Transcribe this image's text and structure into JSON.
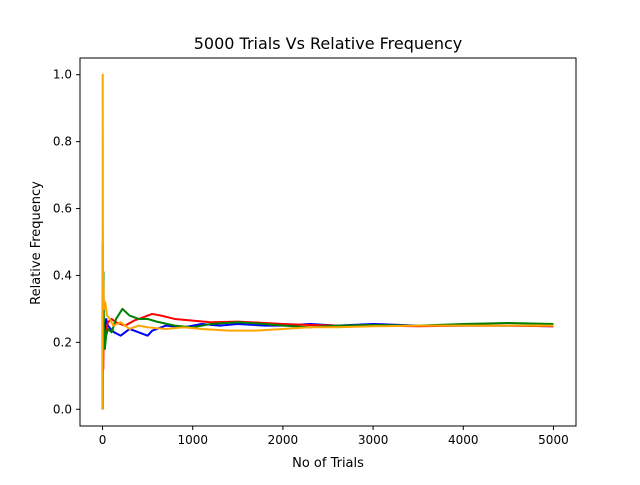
{
  "chart_data": {
    "type": "line",
    "title": "5000 Trials Vs Relative Frequency",
    "xlabel": "No of Trials",
    "ylabel": "Relative Frequency",
    "xlim": [
      -250,
      5250
    ],
    "ylim": [
      -0.05,
      1.05
    ],
    "xticks": [
      0,
      1000,
      2000,
      3000,
      4000,
      5000
    ],
    "xtick_labels": [
      "0",
      "1000",
      "2000",
      "3000",
      "4000",
      "5000"
    ],
    "yticks": [
      0.0,
      0.2,
      0.4,
      0.6,
      0.8,
      1.0
    ],
    "ytick_labels": [
      "0.0",
      "0.2",
      "0.4",
      "0.6",
      "0.8",
      "1.0"
    ],
    "grid": false,
    "series": [
      {
        "color": "#0000ff",
        "points": [
          [
            1,
            0
          ],
          [
            3,
            0.33
          ],
          [
            6,
            0.17
          ],
          [
            10,
            0.3
          ],
          [
            15,
            0.2
          ],
          [
            25,
            0.24
          ],
          [
            40,
            0.27
          ],
          [
            60,
            0.25
          ],
          [
            90,
            0.24
          ],
          [
            130,
            0.23
          ],
          [
            200,
            0.22
          ],
          [
            300,
            0.24
          ],
          [
            400,
            0.23
          ],
          [
            500,
            0.22
          ],
          [
            550,
            0.235
          ],
          [
            700,
            0.25
          ],
          [
            900,
            0.245
          ],
          [
            1100,
            0.255
          ],
          [
            1300,
            0.25
          ],
          [
            1500,
            0.255
          ],
          [
            1800,
            0.25
          ],
          [
            2000,
            0.25
          ],
          [
            2300,
            0.255
          ],
          [
            2600,
            0.25
          ],
          [
            3000,
            0.255
          ],
          [
            3500,
            0.25
          ],
          [
            4000,
            0.25
          ],
          [
            4500,
            0.25
          ],
          [
            5000,
            0.248
          ]
        ]
      },
      {
        "color": "#ff0000",
        "points": [
          [
            1,
            0
          ],
          [
            4,
            0.25
          ],
          [
            8,
            0.12
          ],
          [
            12,
            0.25
          ],
          [
            20,
            0.2
          ],
          [
            35,
            0.23
          ],
          [
            60,
            0.26
          ],
          [
            100,
            0.27
          ],
          [
            150,
            0.26
          ],
          [
            250,
            0.25
          ],
          [
            350,
            0.265
          ],
          [
            450,
            0.275
          ],
          [
            550,
            0.285
          ],
          [
            650,
            0.28
          ],
          [
            800,
            0.27
          ],
          [
            1000,
            0.265
          ],
          [
            1200,
            0.26
          ],
          [
            1500,
            0.262
          ],
          [
            1800,
            0.258
          ],
          [
            2000,
            0.255
          ],
          [
            2300,
            0.252
          ],
          [
            2600,
            0.25
          ],
          [
            3000,
            0.25
          ],
          [
            3500,
            0.248
          ],
          [
            4000,
            0.25
          ],
          [
            4500,
            0.25
          ],
          [
            5000,
            0.248
          ]
        ]
      },
      {
        "color": "#008000",
        "points": [
          [
            1,
            0
          ],
          [
            2,
            0.5
          ],
          [
            5,
            0.2
          ],
          [
            10,
            0.41
          ],
          [
            15,
            0.25
          ],
          [
            25,
            0.18
          ],
          [
            40,
            0.22
          ],
          [
            60,
            0.24
          ],
          [
            100,
            0.23
          ],
          [
            150,
            0.27
          ],
          [
            220,
            0.3
          ],
          [
            300,
            0.28
          ],
          [
            400,
            0.27
          ],
          [
            500,
            0.27
          ],
          [
            600,
            0.262
          ],
          [
            800,
            0.25
          ],
          [
            1000,
            0.245
          ],
          [
            1200,
            0.255
          ],
          [
            1500,
            0.26
          ],
          [
            1800,
            0.255
          ],
          [
            2000,
            0.25
          ],
          [
            2300,
            0.245
          ],
          [
            2600,
            0.25
          ],
          [
            3000,
            0.252
          ],
          [
            3500,
            0.25
          ],
          [
            4000,
            0.255
          ],
          [
            4500,
            0.258
          ],
          [
            5000,
            0.255
          ]
        ]
      },
      {
        "color": "#ffa500",
        "points": [
          [
            1,
            0
          ],
          [
            2,
            1.0
          ],
          [
            3,
            0.67
          ],
          [
            5,
            0.4
          ],
          [
            8,
            0.38
          ],
          [
            12,
            0.33
          ],
          [
            20,
            0.3
          ],
          [
            30,
            0.32
          ],
          [
            50,
            0.28
          ],
          [
            80,
            0.27
          ],
          [
            120,
            0.25
          ],
          [
            200,
            0.26
          ],
          [
            300,
            0.24
          ],
          [
            400,
            0.25
          ],
          [
            500,
            0.245
          ],
          [
            700,
            0.24
          ],
          [
            900,
            0.245
          ],
          [
            1100,
            0.24
          ],
          [
            1400,
            0.235
          ],
          [
            1700,
            0.235
          ],
          [
            2000,
            0.24
          ],
          [
            2300,
            0.245
          ],
          [
            2600,
            0.245
          ],
          [
            3000,
            0.248
          ],
          [
            3500,
            0.25
          ],
          [
            4000,
            0.25
          ],
          [
            4500,
            0.25
          ],
          [
            5000,
            0.25
          ]
        ]
      }
    ]
  }
}
